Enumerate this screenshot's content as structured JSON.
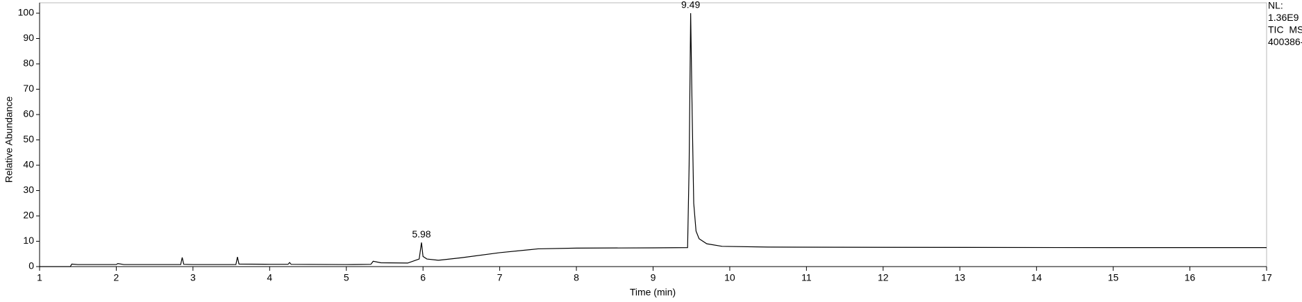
{
  "chart_data": {
    "type": "line",
    "ylabel": "Relative Abundance",
    "xlabel": "Time (min)",
    "x": [
      1,
      1.4,
      1.42,
      1.5,
      2.0,
      2.02,
      2.1,
      2.84,
      2.86,
      2.88,
      3.0,
      3.56,
      3.58,
      3.6,
      4.0,
      4.24,
      4.26,
      4.28,
      5.0,
      5.32,
      5.35,
      5.45,
      5.8,
      5.95,
      5.98,
      6.0,
      6.05,
      6.2,
      6.5,
      7.0,
      7.5,
      8.0,
      9.0,
      9.45,
      9.47,
      9.49,
      9.51,
      9.53,
      9.56,
      9.6,
      9.7,
      9.9,
      10.5,
      12,
      15,
      17
    ],
    "values": [
      0,
      0,
      1,
      0.8,
      0.8,
      1.2,
      0.8,
      0.8,
      3.6,
      0.9,
      0.8,
      0.8,
      3.8,
      1,
      0.9,
      0.9,
      1.6,
      0.9,
      0.8,
      0.9,
      2.1,
      1.5,
      1.4,
      3,
      9.5,
      4,
      3,
      2.5,
      3.5,
      5.5,
      7,
      7.3,
      7.4,
      7.5,
      40,
      100,
      60,
      25,
      14,
      11,
      9,
      8,
      7.7,
      7.6,
      7.5,
      7.5
    ],
    "color": "#000000",
    "peak_labels": [
      5.98,
      9.49
    ],
    "info": [
      "NL:",
      "1.36E9",
      "TIC  MS",
      "400386-"
    ],
    "xlim": [
      1,
      17
    ],
    "xticks": [
      1,
      2,
      3,
      4,
      5,
      6,
      7,
      8,
      9,
      10,
      11,
      12,
      13,
      14,
      15,
      16,
      17
    ],
    "ylim": [
      0,
      100
    ],
    "yticks": [
      0,
      10,
      20,
      30,
      40,
      50,
      60,
      70,
      80,
      90,
      100
    ]
  }
}
